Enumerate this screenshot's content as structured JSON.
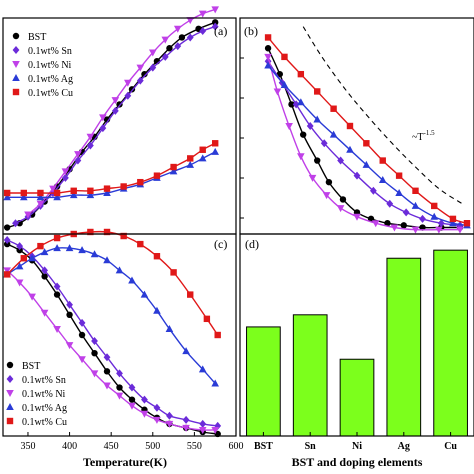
{
  "chart_data": [
    {
      "panel": "(a)",
      "type": "line",
      "xlim": [
        320,
        600
      ],
      "ylim": [
        0,
        1
      ],
      "legend": {
        "placement": "top-left",
        "entries": [
          "BST",
          "0.1wt% Sn",
          "0.1wt% Ni",
          "0.1wt% Ag",
          "0.1wt% Cu"
        ]
      },
      "series": [
        {
          "name": "BST",
          "marker": "circle",
          "color": "#000000",
          "points": [
            [
              325,
              0.03
            ],
            [
              340,
              0.05
            ],
            [
              355,
              0.09
            ],
            [
              370,
              0.15
            ],
            [
              385,
              0.22
            ],
            [
              400,
              0.3
            ],
            [
              415,
              0.38
            ],
            [
              430,
              0.45
            ],
            [
              445,
              0.53
            ],
            [
              460,
              0.6
            ],
            [
              475,
              0.67
            ],
            [
              490,
              0.74
            ],
            [
              505,
              0.8
            ],
            [
              520,
              0.86
            ],
            [
              535,
              0.91
            ],
            [
              555,
              0.95
            ],
            [
              575,
              0.98
            ]
          ]
        },
        {
          "name": "0.1wt% Sn",
          "marker": "diamond",
          "color": "#6b2bd9",
          "points": [
            [
              335,
              0.05
            ],
            [
              350,
              0.08
            ],
            [
              365,
              0.13
            ],
            [
              380,
              0.19
            ],
            [
              395,
              0.26
            ],
            [
              410,
              0.34
            ],
            [
              425,
              0.41
            ],
            [
              440,
              0.49
            ],
            [
              455,
              0.57
            ],
            [
              470,
              0.64
            ],
            [
              485,
              0.71
            ],
            [
              500,
              0.77
            ],
            [
              515,
              0.82
            ],
            [
              530,
              0.87
            ],
            [
              545,
              0.91
            ],
            [
              560,
              0.94
            ],
            [
              575,
              0.96
            ]
          ]
        },
        {
          "name": "0.1wt% Ni",
          "marker": "triangle-down",
          "color": "#c040e8",
          "points": [
            [
              350,
              0.09
            ],
            [
              365,
              0.14
            ],
            [
              380,
              0.21
            ],
            [
              395,
              0.29
            ],
            [
              410,
              0.37
            ],
            [
              425,
              0.45
            ],
            [
              440,
              0.54
            ],
            [
              455,
              0.62
            ],
            [
              470,
              0.7
            ],
            [
              485,
              0.77
            ],
            [
              500,
              0.84
            ],
            [
              515,
              0.9
            ],
            [
              530,
              0.95
            ],
            [
              545,
              0.99
            ],
            [
              560,
              1.02
            ],
            [
              575,
              1.04
            ]
          ]
        },
        {
          "name": "0.1wt% Ag",
          "marker": "triangle-up",
          "color": "#2a3bd6",
          "points": [
            [
              325,
              0.17
            ],
            [
              345,
              0.17
            ],
            [
              365,
              0.17
            ],
            [
              385,
              0.17
            ],
            [
              405,
              0.18
            ],
            [
              425,
              0.18
            ],
            [
              445,
              0.19
            ],
            [
              465,
              0.21
            ],
            [
              485,
              0.23
            ],
            [
              505,
              0.26
            ],
            [
              525,
              0.29
            ],
            [
              545,
              0.32
            ],
            [
              560,
              0.35
            ],
            [
              575,
              0.38
            ]
          ]
        },
        {
          "name": "0.1wt% Cu",
          "marker": "square",
          "color": "#e01818",
          "points": [
            [
              325,
              0.19
            ],
            [
              345,
              0.19
            ],
            [
              365,
              0.19
            ],
            [
              385,
              0.19
            ],
            [
              405,
              0.2
            ],
            [
              425,
              0.2
            ],
            [
              445,
              0.21
            ],
            [
              465,
              0.22
            ],
            [
              485,
              0.24
            ],
            [
              505,
              0.27
            ],
            [
              525,
              0.31
            ],
            [
              545,
              0.35
            ],
            [
              560,
              0.39
            ],
            [
              575,
              0.42
            ]
          ]
        }
      ]
    },
    {
      "panel": "(b)",
      "type": "line",
      "xlim": [
        0,
        1
      ],
      "ylim": [
        0,
        1
      ],
      "annotation": "~T",
      "annotation_exp": "-1.5",
      "series": [
        {
          "name": "BST",
          "marker": "circle",
          "color": "#000000",
          "points": [
            [
              0.12,
              0.86
            ],
            [
              0.17,
              0.74
            ],
            [
              0.22,
              0.6
            ],
            [
              0.27,
              0.46
            ],
            [
              0.33,
              0.34
            ],
            [
              0.38,
              0.24
            ],
            [
              0.44,
              0.16
            ],
            [
              0.5,
              0.1
            ],
            [
              0.56,
              0.07
            ],
            [
              0.63,
              0.05
            ],
            [
              0.7,
              0.04
            ],
            [
              0.78,
              0.03
            ],
            [
              0.86,
              0.03
            ],
            [
              0.94,
              0.03
            ]
          ]
        },
        {
          "name": "0.1wt% Sn",
          "marker": "diamond",
          "color": "#6b2bd9",
          "points": [
            [
              0.12,
              0.8
            ],
            [
              0.18,
              0.7
            ],
            [
              0.24,
              0.6
            ],
            [
              0.3,
              0.5
            ],
            [
              0.36,
              0.42
            ],
            [
              0.43,
              0.34
            ],
            [
              0.5,
              0.27
            ],
            [
              0.57,
              0.2
            ],
            [
              0.64,
              0.14
            ],
            [
              0.71,
              0.1
            ],
            [
              0.78,
              0.07
            ],
            [
              0.86,
              0.05
            ],
            [
              0.94,
              0.04
            ]
          ]
        },
        {
          "name": "0.1wt% Ni",
          "marker": "triangle-down",
          "color": "#c040e8",
          "points": [
            [
              0.12,
              0.82
            ],
            [
              0.16,
              0.66
            ],
            [
              0.21,
              0.5
            ],
            [
              0.26,
              0.36
            ],
            [
              0.31,
              0.26
            ],
            [
              0.37,
              0.18
            ],
            [
              0.43,
              0.12
            ],
            [
              0.5,
              0.08
            ],
            [
              0.58,
              0.05
            ],
            [
              0.66,
              0.03
            ],
            [
              0.75,
              0.02
            ],
            [
              0.85,
              0.02
            ],
            [
              0.94,
              0.02
            ]
          ]
        },
        {
          "name": "0.1wt% Ag",
          "marker": "triangle-up",
          "color": "#2a3bd6",
          "points": [
            [
              0.12,
              0.78
            ],
            [
              0.19,
              0.69
            ],
            [
              0.26,
              0.61
            ],
            [
              0.33,
              0.53
            ],
            [
              0.4,
              0.46
            ],
            [
              0.47,
              0.39
            ],
            [
              0.54,
              0.32
            ],
            [
              0.61,
              0.25
            ],
            [
              0.68,
              0.19
            ],
            [
              0.75,
              0.13
            ],
            [
              0.83,
              0.08
            ],
            [
              0.91,
              0.05
            ],
            [
              0.97,
              0.04
            ]
          ]
        },
        {
          "name": "0.1wt% Cu",
          "marker": "square",
          "color": "#e01818",
          "points": [
            [
              0.12,
              0.91
            ],
            [
              0.19,
              0.82
            ],
            [
              0.26,
              0.74
            ],
            [
              0.33,
              0.66
            ],
            [
              0.4,
              0.58
            ],
            [
              0.47,
              0.5
            ],
            [
              0.54,
              0.42
            ],
            [
              0.61,
              0.34
            ],
            [
              0.68,
              0.27
            ],
            [
              0.75,
              0.2
            ],
            [
              0.83,
              0.13
            ],
            [
              0.91,
              0.07
            ],
            [
              0.97,
              0.05
            ]
          ]
        }
      ],
      "guide": {
        "style": "dashed",
        "color": "#000000",
        "points": [
          [
            0.27,
            0.96
          ],
          [
            0.35,
            0.82
          ],
          [
            0.45,
            0.67
          ],
          [
            0.55,
            0.54
          ],
          [
            0.65,
            0.42
          ],
          [
            0.75,
            0.31
          ],
          [
            0.85,
            0.21
          ],
          [
            0.95,
            0.14
          ]
        ]
      }
    },
    {
      "panel": "(c)",
      "type": "line",
      "xlim": [
        320,
        600
      ],
      "ylim": [
        0,
        1
      ],
      "xlabel": "Temperature(K)",
      "xticks": [
        "350",
        "400",
        "450",
        "500",
        "550",
        "600"
      ],
      "legend": {
        "placement": "bottom-left",
        "entries": [
          "BST",
          "0.1wt% Sn",
          "0.1wt% Ni",
          "0.1wt% Ag",
          "0.1wt% Cu"
        ]
      },
      "series": [
        {
          "name": "BST",
          "marker": "circle",
          "color": "#000000",
          "points": [
            [
              325,
              0.95
            ],
            [
              340,
              0.92
            ],
            [
              355,
              0.87
            ],
            [
              370,
              0.79
            ],
            [
              385,
              0.7
            ],
            [
              400,
              0.6
            ],
            [
              415,
              0.5
            ],
            [
              430,
              0.41
            ],
            [
              445,
              0.32
            ],
            [
              460,
              0.24
            ],
            [
              475,
              0.18
            ],
            [
              490,
              0.13
            ],
            [
              505,
              0.09
            ],
            [
              520,
              0.06
            ],
            [
              540,
              0.04
            ],
            [
              560,
              0.02
            ],
            [
              578,
              0.01
            ]
          ]
        },
        {
          "name": "0.1wt% Sn",
          "marker": "diamond",
          "color": "#6b2bd9",
          "points": [
            [
              325,
              0.97
            ],
            [
              340,
              0.94
            ],
            [
              355,
              0.89
            ],
            [
              370,
              0.82
            ],
            [
              385,
              0.74
            ],
            [
              400,
              0.65
            ],
            [
              415,
              0.56
            ],
            [
              430,
              0.47
            ],
            [
              445,
              0.39
            ],
            [
              460,
              0.31
            ],
            [
              475,
              0.24
            ],
            [
              490,
              0.18
            ],
            [
              505,
              0.14
            ],
            [
              520,
              0.1
            ],
            [
              540,
              0.08
            ],
            [
              560,
              0.06
            ],
            [
              578,
              0.05
            ]
          ]
        },
        {
          "name": "0.1wt% Ni",
          "marker": "triangle-down",
          "color": "#c040e8",
          "points": [
            [
              325,
              0.82
            ],
            [
              340,
              0.76
            ],
            [
              355,
              0.69
            ],
            [
              370,
              0.61
            ],
            [
              385,
              0.53
            ],
            [
              400,
              0.45
            ],
            [
              415,
              0.38
            ],
            [
              430,
              0.31
            ],
            [
              445,
              0.25
            ],
            [
              460,
              0.2
            ],
            [
              475,
              0.15
            ],
            [
              490,
              0.11
            ],
            [
              505,
              0.08
            ],
            [
              520,
              0.06
            ],
            [
              540,
              0.04
            ],
            [
              560,
              0.03
            ],
            [
              575,
              0.03
            ]
          ]
        },
        {
          "name": "0.1wt% Ag",
          "marker": "triangle-up",
          "color": "#2a3bd6",
          "points": [
            [
              325,
              0.8
            ],
            [
              340,
              0.84
            ],
            [
              355,
              0.88
            ],
            [
              370,
              0.91
            ],
            [
              385,
              0.93
            ],
            [
              400,
              0.93
            ],
            [
              415,
              0.92
            ],
            [
              430,
              0.9
            ],
            [
              445,
              0.87
            ],
            [
              460,
              0.82
            ],
            [
              475,
              0.77
            ],
            [
              490,
              0.7
            ],
            [
              505,
              0.62
            ],
            [
              520,
              0.53
            ],
            [
              540,
              0.42
            ],
            [
              560,
              0.33
            ],
            [
              575,
              0.26
            ]
          ]
        },
        {
          "name": "0.1wt% Cu",
          "marker": "square",
          "color": "#e01818",
          "points": [
            [
              325,
              0.8
            ],
            [
              345,
              0.88
            ],
            [
              365,
              0.94
            ],
            [
              385,
              0.98
            ],
            [
              405,
              1.0
            ],
            [
              425,
              1.01
            ],
            [
              445,
              1.01
            ],
            [
              465,
              0.99
            ],
            [
              485,
              0.95
            ],
            [
              505,
              0.89
            ],
            [
              525,
              0.81
            ],
            [
              545,
              0.7
            ],
            [
              565,
              0.58
            ],
            [
              578,
              0.5
            ]
          ]
        }
      ]
    },
    {
      "panel": "(d)",
      "type": "bar",
      "xlabel": "BST and doping elements",
      "categories": [
        "BST",
        "Sn",
        "Ni",
        "Ag",
        "Cu"
      ],
      "values": [
        0.54,
        0.6,
        0.38,
        0.88,
        0.92
      ],
      "ylim": [
        0,
        1
      ],
      "color": "#7cff1c"
    }
  ]
}
